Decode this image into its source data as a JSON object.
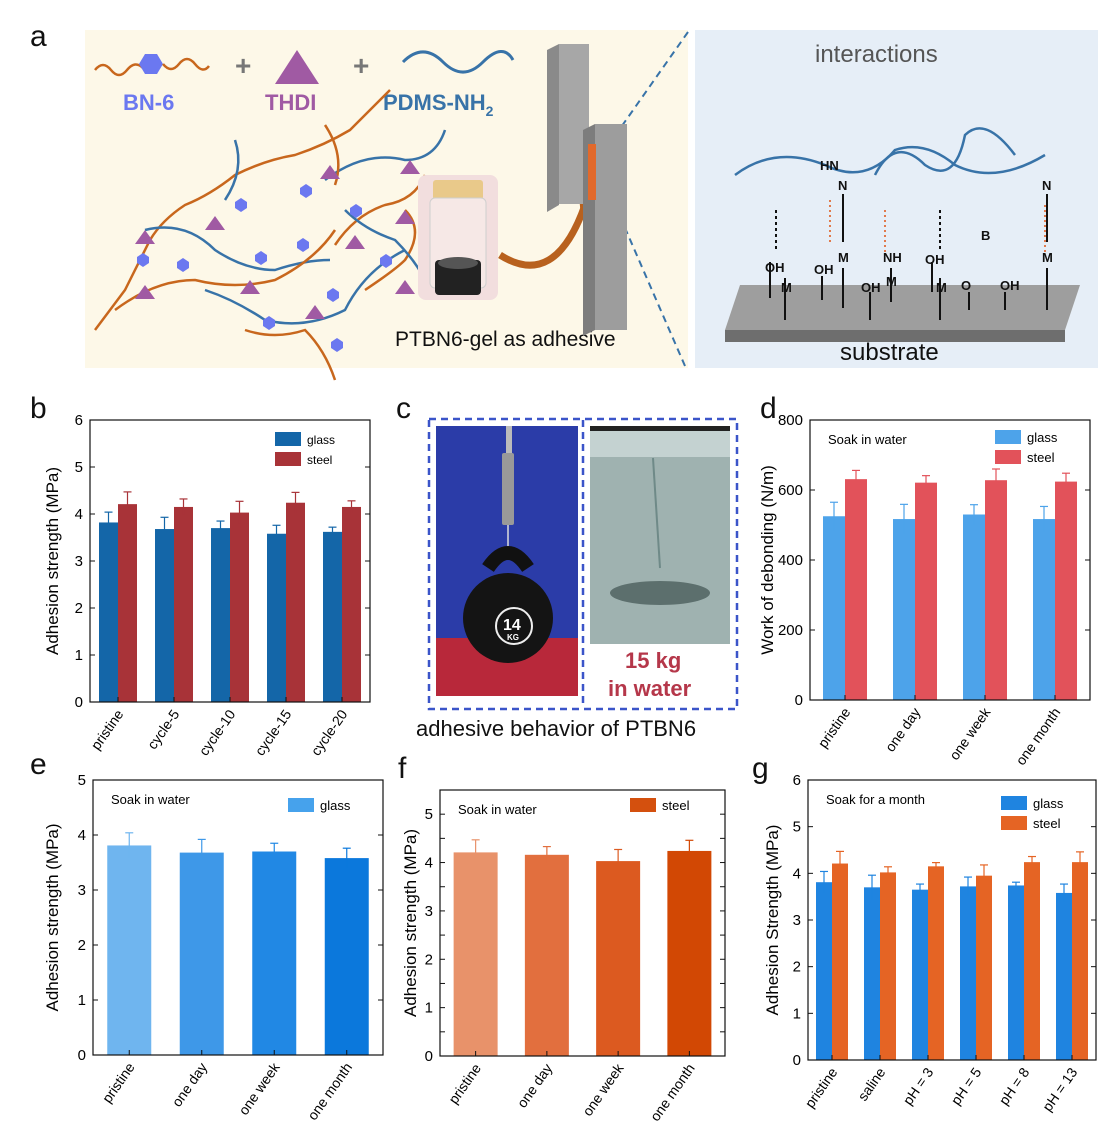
{
  "panels": {
    "a": {
      "letter": "a",
      "bn6": "BN-6",
      "thdi": "THDI",
      "pdms": "PDMS-NH",
      "pdms_sub": "2",
      "plus": "+",
      "gel_caption": "PTBN6-gel as adhesive",
      "interactions_title": "interactions",
      "substrate": "substrate",
      "chem": {
        "oh": "OH",
        "m": "M",
        "n": "N",
        "nh": "NH",
        "hn": "HN",
        "h": "H",
        "b": "B",
        "o": "O"
      }
    },
    "b": {
      "letter": "b"
    },
    "c": {
      "letter": "c",
      "weight_label": "15 kg",
      "weight_label2": "in water",
      "caption": "adhesive behavior of PTBN6",
      "kettlebell_text": "14",
      "kettlebell_unit": "KG"
    },
    "d": {
      "letter": "d"
    },
    "e": {
      "letter": "e"
    },
    "f": {
      "letter": "f"
    },
    "g": {
      "letter": "g"
    }
  },
  "colors": {
    "a_bg": "#fdf8e8",
    "a_right_bg": "#e6eef7",
    "bn6": "#6b78f0",
    "thdi": "#a05aa3",
    "pdms": "#3873a8",
    "chain_orange": "#c8671d",
    "accent_red": "#b5374a",
    "c_border": "#3b55c9"
  },
  "chart_data": [
    {
      "id": "b",
      "type": "bar",
      "categories": [
        "pristine",
        "cycle-5",
        "cycle-10",
        "cycle-15",
        "cycle-20"
      ],
      "series": [
        {
          "name": "glass",
          "values": [
            3.82,
            3.68,
            3.7,
            3.58,
            3.62
          ],
          "errors": [
            0.22,
            0.25,
            0.15,
            0.18,
            0.1
          ],
          "color": "#1466a8"
        },
        {
          "name": "steel",
          "values": [
            4.21,
            4.15,
            4.03,
            4.24,
            4.15
          ],
          "errors": [
            0.26,
            0.17,
            0.24,
            0.22,
            0.13
          ],
          "color": "#a83338"
        }
      ],
      "ylabel": "Adhesion strength (MPa)",
      "ylim": [
        0,
        6
      ],
      "yticks": [
        0,
        1,
        2,
        3,
        4,
        5,
        6
      ],
      "legend": "top-right",
      "annotation": ""
    },
    {
      "id": "d",
      "type": "bar",
      "categories": [
        "pristine",
        "one day",
        "one week",
        "one month"
      ],
      "series": [
        {
          "name": "glass",
          "values": [
            525,
            517,
            530,
            517
          ],
          "errors": [
            40,
            42,
            28,
            36
          ],
          "color": "#4da3ea"
        },
        {
          "name": "steel",
          "values": [
            631,
            621,
            628,
            624
          ],
          "errors": [
            25,
            20,
            32,
            24
          ],
          "color": "#e2525a"
        }
      ],
      "ylabel": "Work of debonding (N/m)",
      "ylim": [
        0,
        800
      ],
      "yticks": [
        0,
        200,
        400,
        600,
        800
      ],
      "legend": "top-right",
      "annotation": "Soak in water"
    },
    {
      "id": "e",
      "type": "bar",
      "categories": [
        "pristine",
        "one day",
        "one week",
        "one month"
      ],
      "series": [
        {
          "name": "glass",
          "values": [
            3.81,
            3.68,
            3.7,
            3.58
          ],
          "errors": [
            0.23,
            0.24,
            0.15,
            0.18
          ],
          "colors": [
            "#6fb5ef",
            "#3e98e8",
            "#2188e4",
            "#0b78dc"
          ],
          "color": "#46a2ec"
        }
      ],
      "ylabel": "Adhesion strength (MPa)",
      "ylim": [
        0,
        5
      ],
      "yticks": [
        0,
        1,
        2,
        3,
        4,
        5
      ],
      "legend": "top-right",
      "annotation": "Soak in water"
    },
    {
      "id": "f",
      "type": "bar",
      "categories": [
        "pristine",
        "one day",
        "one week",
        "one month"
      ],
      "series": [
        {
          "name": "steel",
          "values": [
            4.21,
            4.16,
            4.03,
            4.24
          ],
          "errors": [
            0.26,
            0.17,
            0.24,
            0.22
          ],
          "colors": [
            "#e8926a",
            "#e26f3e",
            "#dc5a20",
            "#d24804"
          ],
          "color": "#d4500e"
        }
      ],
      "ylabel": "Adhesion strength (MPa)",
      "ylim": [
        0,
        5.5
      ],
      "yticks": [
        0,
        0.5,
        1,
        1.5,
        2,
        2.5,
        3,
        3.5,
        4,
        4.5,
        5
      ],
      "ytick_labels": [
        "0",
        "",
        "1",
        "",
        "2",
        "",
        "3",
        "",
        "4",
        "",
        "5"
      ],
      "legend": "top-right",
      "annotation": "Soak in water"
    },
    {
      "id": "g",
      "type": "bar",
      "categories": [
        "pristine",
        "saline",
        "pH = 3",
        "pH = 5",
        "pH = 8",
        "pH = 13"
      ],
      "series": [
        {
          "name": "glass",
          "values": [
            3.81,
            3.7,
            3.65,
            3.72,
            3.74,
            3.58
          ],
          "errors": [
            0.23,
            0.26,
            0.12,
            0.2,
            0.07,
            0.19
          ],
          "color": "#1f84e0"
        },
        {
          "name": "steel",
          "values": [
            4.21,
            4.02,
            4.15,
            3.95,
            4.24,
            4.24
          ],
          "errors": [
            0.26,
            0.12,
            0.08,
            0.23,
            0.12,
            0.22
          ],
          "color": "#e56424"
        }
      ],
      "ylabel": "Adhesion Strength (MPa)",
      "ylim": [
        0,
        6
      ],
      "yticks": [
        0,
        1,
        2,
        3,
        4,
        5,
        6
      ],
      "legend": "top-right",
      "annotation": "Soak for a month"
    }
  ]
}
